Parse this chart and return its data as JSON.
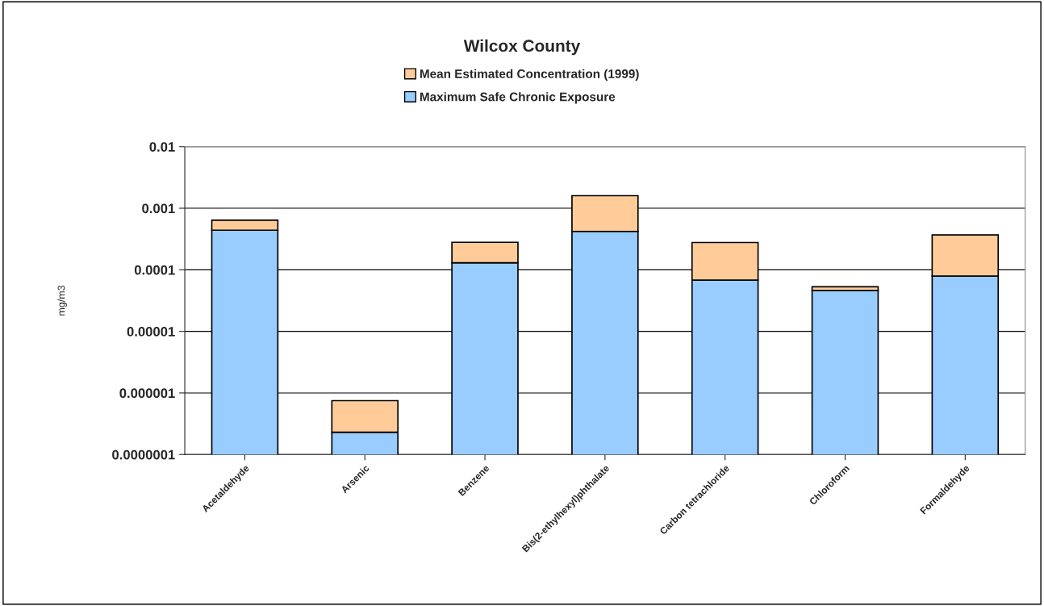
{
  "chart_data": {
    "type": "bar",
    "title": "Wilcox County",
    "ylabel": "mg/m3",
    "stacked": true,
    "log": "y",
    "grid": "y",
    "legend": "top",
    "categories": [
      "Acetaldehyde",
      "Arsenic",
      "Benzene",
      "Bis(2-ethylhexyl)phthalate",
      "Carbon tetrachloride",
      "Chloroform",
      "Formaldehyde"
    ],
    "series": [
      {
        "name": "Maximum Safe Chronic Exposure",
        "color": "#99ccff",
        "values": [
          0.00044,
          2.3e-07,
          0.00013,
          0.00042,
          6.8e-05,
          4.6e-05,
          7.9e-05
        ]
      },
      {
        "name": "Mean Estimated Concentration (1999)",
        "color": "#ffcc99",
        "values": [
          0.0002,
          5.2e-07,
          0.00015,
          0.00118,
          0.00021,
          7e-06,
          0.00029
        ]
      }
    ],
    "ylim": [
      1e-07,
      0.01
    ],
    "yticks": [
      {
        "value": 1e-07,
        "label": "0.0000001"
      },
      {
        "value": 1e-06,
        "label": "0.000001"
      },
      {
        "value": 1e-05,
        "label": "0.00001"
      },
      {
        "value": 0.0001,
        "label": "0.0001"
      },
      {
        "value": 0.001,
        "label": "0.001"
      },
      {
        "value": 0.01,
        "label": "0.01"
      }
    ]
  }
}
